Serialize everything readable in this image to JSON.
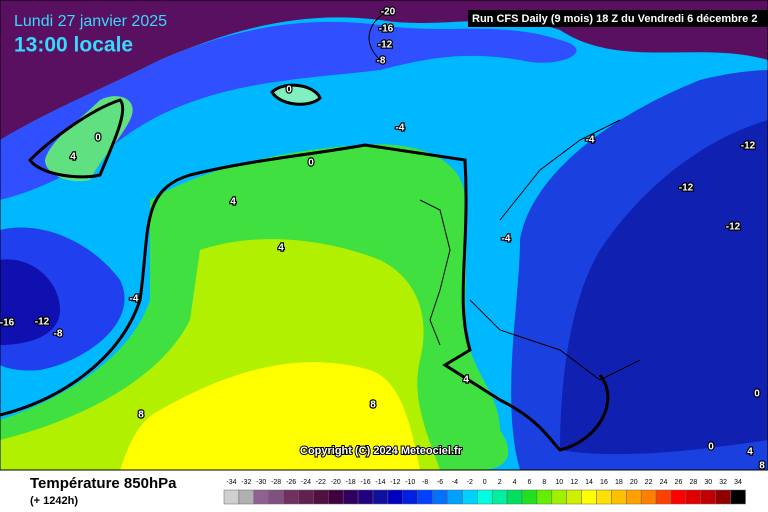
{
  "header": {
    "date": "Lundi 27 janvier 2025",
    "time": "13:00 locale",
    "run": "Run CFS Daily (9 mois) 18 Z du Vendredi 6 décembre 2"
  },
  "copyright": "Copyright (C) 2024 Meteociel.fr",
  "footer": {
    "title": "Température 850hPa",
    "lead": "(+ 1242h)"
  },
  "scale": {
    "labels": [
      -34,
      -32,
      -30,
      -28,
      -26,
      -24,
      -22,
      -20,
      -18,
      -16,
      -14,
      -12,
      -10,
      -8,
      -6,
      -4,
      -2,
      0,
      2,
      4,
      6,
      8,
      10,
      12,
      14,
      16,
      18,
      20,
      22,
      24,
      26,
      28,
      30,
      32,
      34
    ],
    "colors": [
      "#d0d0d0",
      "#b0b0b0",
      "#906090",
      "#805080",
      "#703060",
      "#602050",
      "#501040",
      "#400040",
      "#300060",
      "#200080",
      "#1010a0",
      "#0000c0",
      "#0020e0",
      "#0040ff",
      "#0070ff",
      "#00a0ff",
      "#00d0ff",
      "#00ffe0",
      "#00f0a0",
      "#00e060",
      "#20e020",
      "#60f000",
      "#a0f000",
      "#d0f000",
      "#ffff00",
      "#ffe000",
      "#ffc000",
      "#ffa000",
      "#ff8000",
      "#ff4000",
      "#ff0000",
      "#e00000",
      "#c00000",
      "#900000",
      "#000000"
    ]
  },
  "contour_labels": [
    -20,
    -16,
    -12,
    -8,
    0,
    -4,
    0,
    4,
    0,
    -4,
    -12,
    -12,
    4,
    -4,
    -12,
    4,
    -4,
    -16,
    -12,
    -8,
    4,
    8,
    8,
    0,
    0,
    4,
    8
  ]
}
